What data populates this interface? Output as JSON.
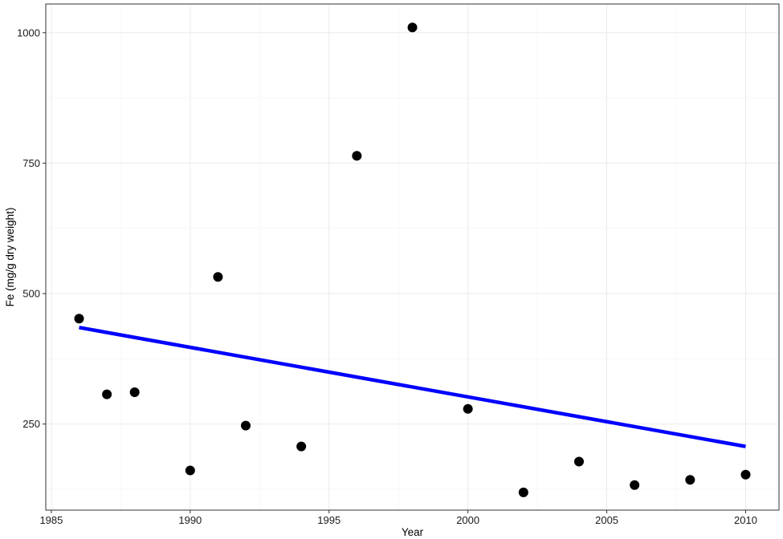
{
  "chart_data": {
    "type": "scatter",
    "title": "",
    "xlabel": "Year",
    "ylabel": "Fe (mg/g dry weight)",
    "xlim": [
      1984.8,
      2011.2
    ],
    "ylim": [
      85,
      1055
    ],
    "x_ticks": [
      1985,
      1990,
      1995,
      2000,
      2005,
      2010
    ],
    "y_ticks": [
      250,
      500,
      750,
      1000
    ],
    "grid": true,
    "legend": "none",
    "series": [
      {
        "type": "scatter",
        "color": "#000000",
        "points": [
          {
            "x": 1986,
            "y": 452
          },
          {
            "x": 1987,
            "y": 307
          },
          {
            "x": 1988,
            "y": 311
          },
          {
            "x": 1990,
            "y": 161
          },
          {
            "x": 1991,
            "y": 532
          },
          {
            "x": 1992,
            "y": 247
          },
          {
            "x": 1994,
            "y": 207
          },
          {
            "x": 1996,
            "y": 764
          },
          {
            "x": 1998,
            "y": 1010
          },
          {
            "x": 2000,
            "y": 279
          },
          {
            "x": 2002,
            "y": 119
          },
          {
            "x": 2004,
            "y": 178
          },
          {
            "x": 2006,
            "y": 133
          },
          {
            "x": 2008,
            "y": 143
          },
          {
            "x": 2010,
            "y": 153
          }
        ]
      },
      {
        "type": "line",
        "color": "#0000ff",
        "points": [
          {
            "x": 1986,
            "y": 435
          },
          {
            "x": 2010,
            "y": 207
          }
        ]
      }
    ]
  }
}
